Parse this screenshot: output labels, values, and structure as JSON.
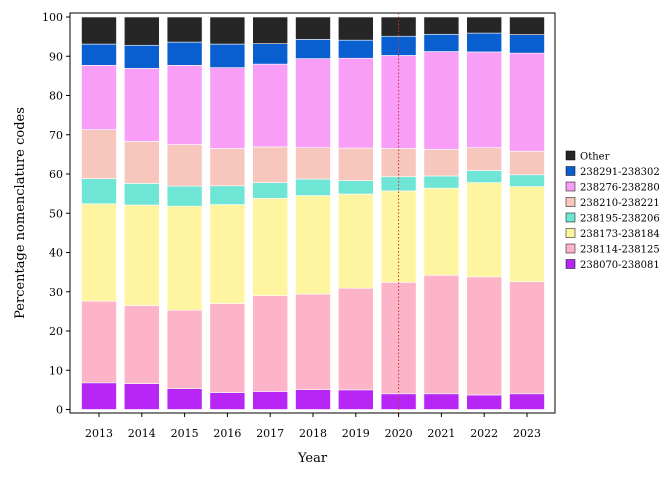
{
  "chart_data": {
    "type": "bar",
    "stacked": true,
    "xlabel": "Year",
    "ylabel": "Percentage nomenclature codes",
    "ylim": [
      0,
      100
    ],
    "yticks": [
      0,
      10,
      20,
      30,
      40,
      50,
      60,
      70,
      80,
      90,
      100
    ],
    "categories": [
      "2013",
      "2014",
      "2015",
      "2016",
      "2017",
      "2018",
      "2019",
      "2020",
      "2021",
      "2022",
      "2023"
    ],
    "grid": false,
    "legend_position": "right",
    "annotations": [
      {
        "type": "vline",
        "category": "2020",
        "color": "#c0392b",
        "style": "dotted"
      }
    ],
    "series": [
      {
        "name": "238070-238081",
        "color": "#b726f5",
        "values": [
          6.8,
          6.6,
          5.3,
          4.3,
          4.6,
          5.1,
          5.0,
          4.0,
          4.0,
          3.7,
          4.0
        ]
      },
      {
        "name": "238114-238125",
        "color": "#fdb3c8",
        "values": [
          20.8,
          19.9,
          20.0,
          22.7,
          24.4,
          24.3,
          25.9,
          28.4,
          30.2,
          30.1,
          28.6
        ]
      },
      {
        "name": "238173-238184",
        "color": "#fff5a1",
        "values": [
          24.8,
          25.6,
          26.5,
          25.2,
          24.8,
          25.1,
          24.0,
          23.3,
          22.2,
          24.0,
          24.2
        ]
      },
      {
        "name": "238195-238206",
        "color": "#6fe5d6",
        "values": [
          6.4,
          5.5,
          5.1,
          4.8,
          4.0,
          4.2,
          3.4,
          3.6,
          3.1,
          3.1,
          3.0
        ]
      },
      {
        "name": "238210-238221",
        "color": "#f7c7be",
        "values": [
          12.5,
          10.7,
          10.6,
          9.5,
          9.1,
          8.0,
          8.3,
          7.2,
          6.8,
          5.8,
          6.0
        ]
      },
      {
        "name": "238276-238280",
        "color": "#f99ef7",
        "values": [
          16.4,
          18.6,
          20.2,
          20.6,
          21.1,
          22.7,
          22.9,
          23.7,
          24.9,
          24.4,
          25.0
        ]
      },
      {
        "name": "238291-238302",
        "color": "#0a5fd0",
        "values": [
          5.4,
          5.9,
          5.9,
          6.0,
          5.2,
          4.9,
          4.6,
          4.9,
          4.4,
          4.8,
          4.7
        ]
      },
      {
        "name": "Other",
        "color": "#262626",
        "values": [
          6.9,
          7.2,
          6.4,
          6.9,
          6.8,
          5.7,
          5.9,
          4.9,
          4.4,
          4.1,
          4.5
        ]
      }
    ]
  }
}
